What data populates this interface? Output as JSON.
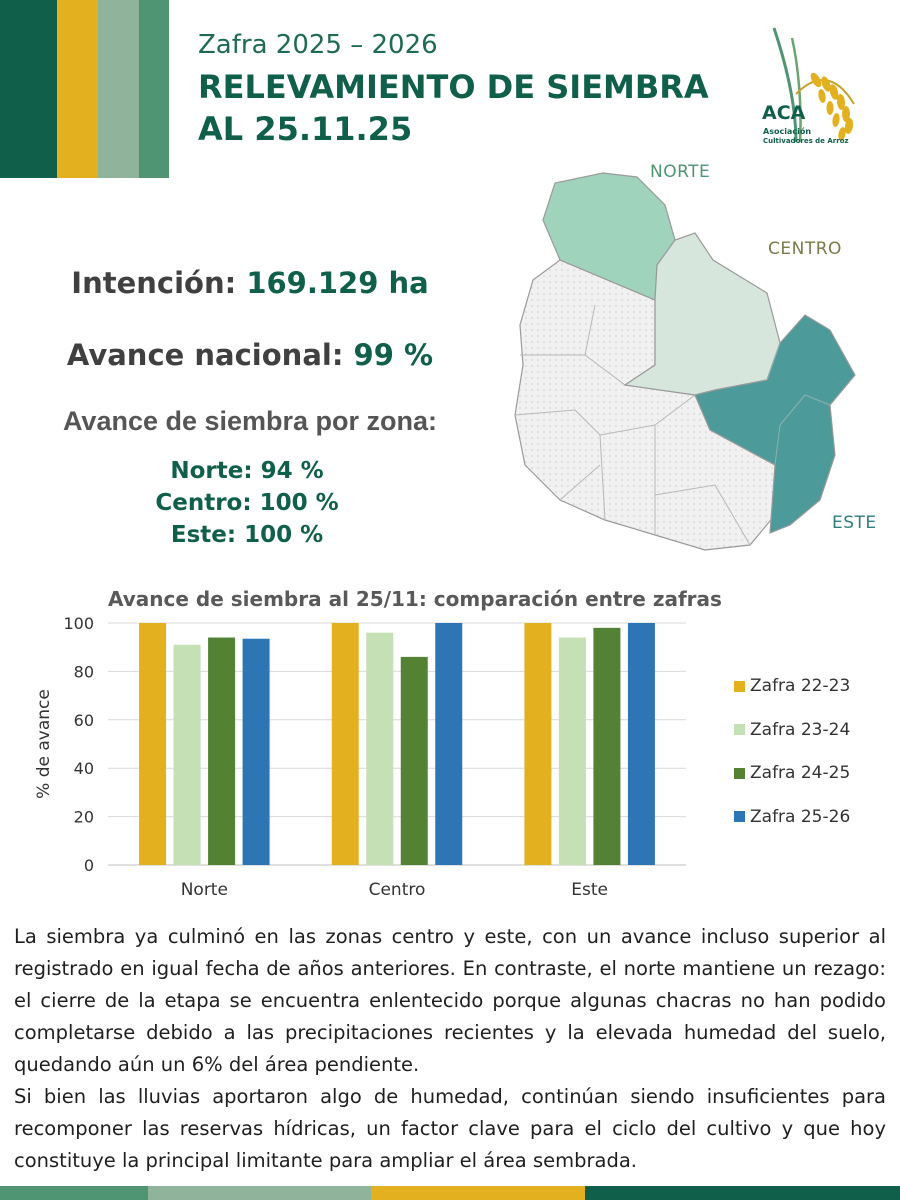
{
  "header": {
    "subtitle": "Zafra 2025 – 2026",
    "title_line1": "RELEVAMIENTO DE SIEMBRA",
    "title_line2": "AL 25.11.25",
    "stripe_colors": [
      "#0f5f4a",
      "#e3b11f",
      "#8fb39b",
      "#4f9473"
    ]
  },
  "logo": {
    "icon": "rice-plant-icon",
    "short": "ACA",
    "line1": "Asociación",
    "line2": "Cultivadores de Arroz"
  },
  "summary": {
    "intencion_label": "Intención:",
    "intencion_value": "169.129 ha",
    "avance_label": "Avance nacional:",
    "avance_value": "99 %",
    "zona_heading": "Avance de siembra por zona:",
    "zonas": [
      {
        "label": "Norte:",
        "value": "94 %"
      },
      {
        "label": "Centro:",
        "value": "100 %"
      },
      {
        "label": "Este:",
        "value": "100 %"
      }
    ]
  },
  "map": {
    "labels": {
      "norte": "NORTE",
      "centro": "CENTRO",
      "este": "ESTE"
    },
    "colors": {
      "norte": "#9fd3bc",
      "centro": "#d7e6dc",
      "este": "#4c9a9a",
      "other": "#efefef",
      "border": "#9a9a9a"
    }
  },
  "chart_data": {
    "type": "bar",
    "title": "Avance de siembra al 25/11: comparación entre zafras",
    "xlabel": "",
    "ylabel": "% de avance",
    "ylim": [
      0,
      100
    ],
    "yticks": [
      "0",
      "20",
      "40",
      "60",
      "80",
      "100"
    ],
    "grid": true,
    "legend_position": "right",
    "categories": [
      "Norte",
      "Centro",
      "Este"
    ],
    "series": [
      {
        "name": "Zafra 22-23",
        "color": "#e3b11f",
        "values": [
          100,
          100,
          100
        ]
      },
      {
        "name": "Zafra 23-24",
        "color": "#c5e0b4",
        "values": [
          91,
          96,
          94
        ]
      },
      {
        "name": "Zafra 24-25",
        "color": "#548235",
        "values": [
          94,
          86,
          98
        ]
      },
      {
        "name": "Zafra 25-26",
        "color": "#2e75b6",
        "values": [
          93.5,
          100,
          100
        ]
      }
    ]
  },
  "body": {
    "paragraph1": "La siembra ya culminó en las zonas centro y este, con un avance incluso superior al registrado en igual fecha de años anteriores. En contraste, el norte mantiene un rezago: el cierre de la etapa se encuentra enlentecido porque algunas chacras no han podido completarse debido a las precipitaciones recientes y la elevada humedad del suelo, quedando aún un 6% del área pendiente.",
    "paragraph2": "Si bien las lluvias aportaron algo de humedad, continúan siendo insuficientes para recomponer las reservas hídricas, un factor clave para el ciclo del cultivo y que hoy constituye la principal limitante para ampliar el área sembrada."
  },
  "footer": {
    "colors": [
      "#4f9473",
      "#8fb39b",
      "#e3b11f",
      "#0f5f4a"
    ]
  }
}
